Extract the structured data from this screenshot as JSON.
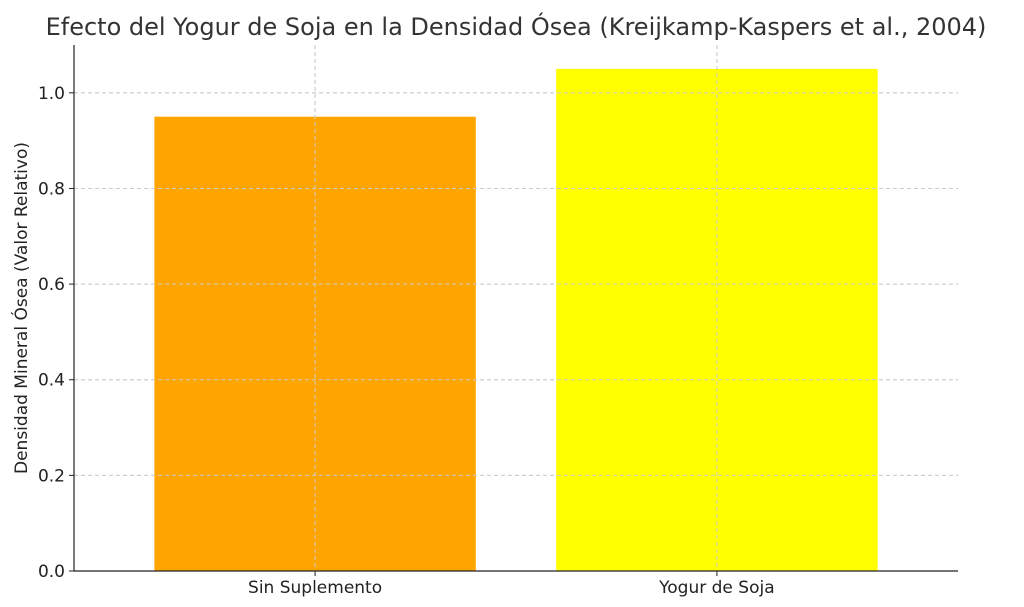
{
  "chart_data": {
    "type": "bar",
    "title": "Efecto del Yogur de Soja en la Densidad Ósea (Kreijkamp-Kaspers et al., 2004)",
    "xlabel": "",
    "ylabel": "Densidad Mineral Ósea (Valor Relativo)",
    "categories": [
      "Sin Suplemento",
      "Yogur de Soja"
    ],
    "values": [
      0.95,
      1.05
    ],
    "colors": [
      "#FFA500",
      "#FFFF00"
    ],
    "ylim": [
      0,
      1.1
    ],
    "yticks": [
      0.0,
      0.2,
      0.4,
      0.6,
      0.8,
      1.0
    ],
    "ytick_labels": [
      "0.0",
      "0.2",
      "0.4",
      "0.6",
      "0.8",
      "1.0"
    ],
    "grid": true
  }
}
